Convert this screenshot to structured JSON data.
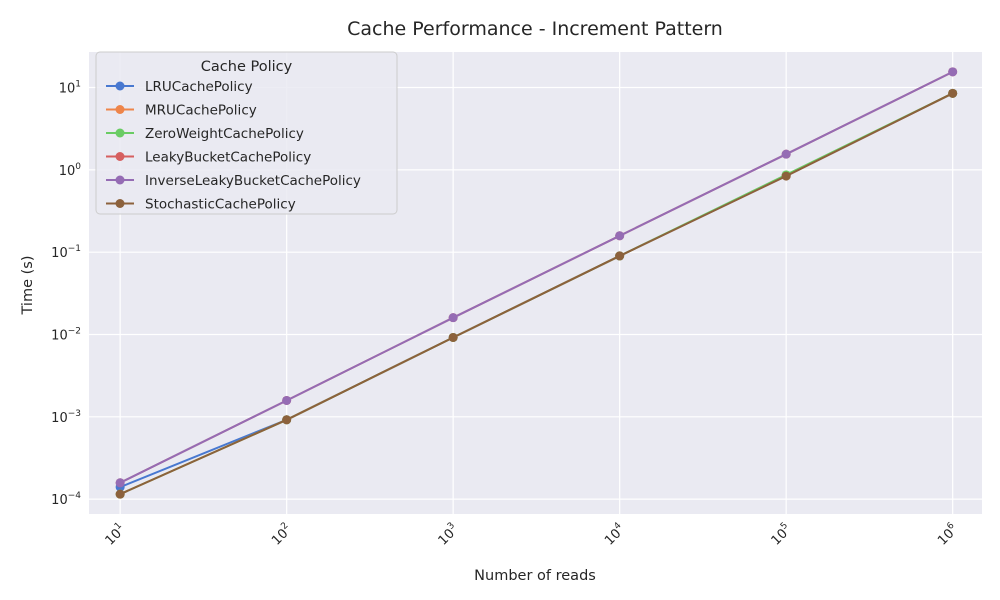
{
  "chart_data": {
    "type": "line",
    "title": "Cache Performance - Increment Pattern",
    "xlabel": "Number of reads",
    "ylabel": "Time (s)",
    "xscale": "log",
    "yscale": "log",
    "xlim": [
      6.5,
      1500000
    ],
    "ylim": [
      6.6e-05,
      27
    ],
    "x_ticks": [
      {
        "base": "10",
        "exp": "1"
      },
      {
        "base": "10",
        "exp": "2"
      },
      {
        "base": "10",
        "exp": "3"
      },
      {
        "base": "10",
        "exp": "4"
      },
      {
        "base": "10",
        "exp": "5"
      },
      {
        "base": "10",
        "exp": "6"
      }
    ],
    "y_ticks": [
      {
        "base": "10",
        "exp": "−4"
      },
      {
        "base": "10",
        "exp": "−3"
      },
      {
        "base": "10",
        "exp": "−2"
      },
      {
        "base": "10",
        "exp": "−1"
      },
      {
        "base": "10",
        "exp": "0"
      },
      {
        "base": "10",
        "exp": "1"
      }
    ],
    "grid": true,
    "legend_title": "Cache Policy",
    "legend_position": "top-left",
    "x": [
      10,
      100,
      1000,
      10000,
      100000,
      1000000
    ],
    "series": [
      {
        "name": "LRUCachePolicy",
        "color": "#4878d0",
        "values": [
          0.00014,
          0.00092,
          0.0092,
          0.09,
          0.85,
          8.5
        ]
      },
      {
        "name": "MRUCachePolicy",
        "color": "#ee854a",
        "values": [
          0.000115,
          0.00092,
          0.0092,
          0.09,
          0.85,
          8.5
        ]
      },
      {
        "name": "ZeroWeightCachePolicy",
        "color": "#6acc64",
        "values": [
          0.000115,
          0.00092,
          0.0092,
          0.09,
          0.87,
          8.5
        ]
      },
      {
        "name": "LeakyBucketCachePolicy",
        "color": "#d65f5f",
        "values": [
          0.000158,
          0.00158,
          0.016,
          0.158,
          1.55,
          15.5
        ]
      },
      {
        "name": "InverseLeakyBucketCachePolicy",
        "color": "#956cb4",
        "values": [
          0.000158,
          0.00158,
          0.016,
          0.158,
          1.55,
          15.5
        ]
      },
      {
        "name": "StochasticCachePolicy",
        "color": "#8c613c",
        "values": [
          0.000115,
          0.00092,
          0.0092,
          0.09,
          0.84,
          8.5
        ]
      }
    ]
  }
}
